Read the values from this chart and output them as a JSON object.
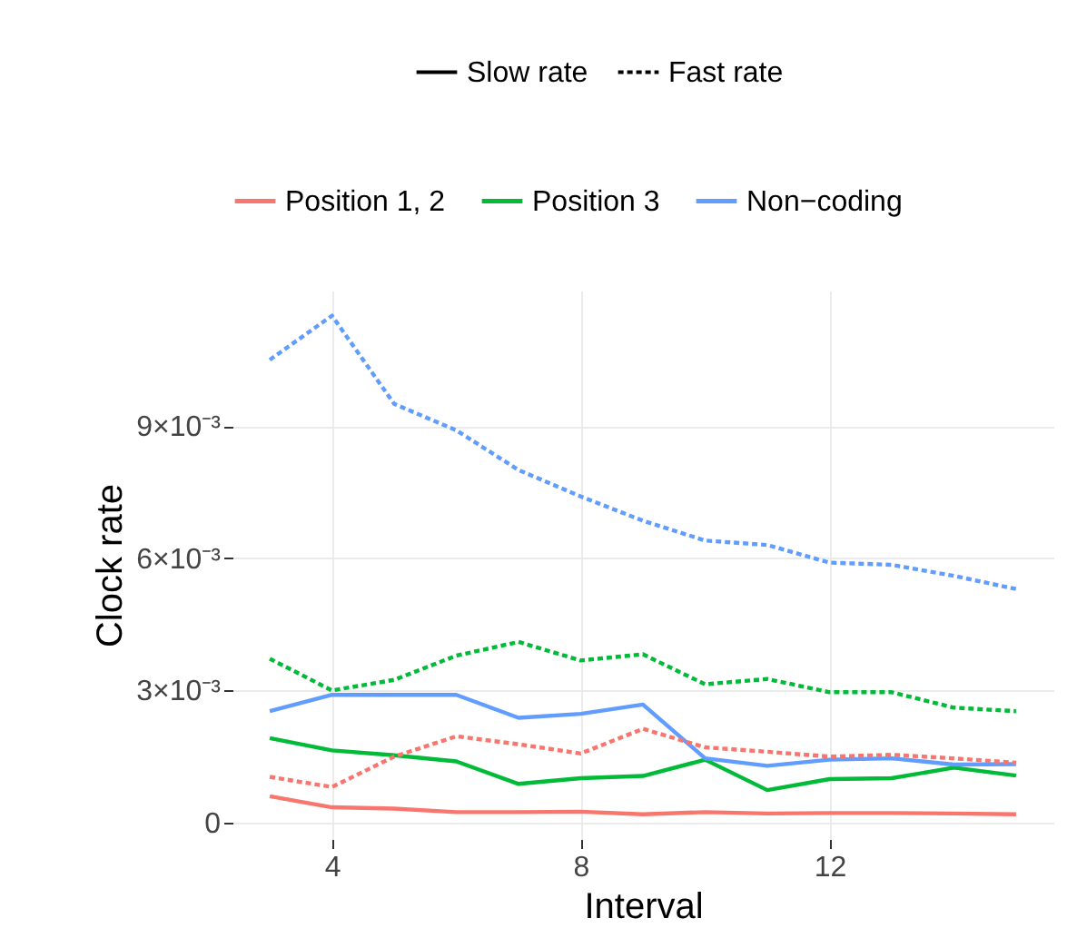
{
  "chart_data": {
    "type": "line",
    "xlabel": "Interval",
    "ylabel": "Clock rate",
    "x": [
      3,
      4,
      5,
      6,
      7,
      8,
      9,
      10,
      11,
      12,
      13,
      14,
      15
    ],
    "xlim": [
      2.4,
      15.6
    ],
    "xticks": [
      4,
      8,
      12
    ],
    "ylim": [
      -0.00037,
      0.01207
    ],
    "yticks": [
      0,
      {
        "value": 0.003,
        "label": "3×10⁻³"
      },
      {
        "value": 0.006,
        "label": "6×10⁻³"
      },
      {
        "value": 0.009,
        "label": "9×10⁻³"
      }
    ],
    "grid": true,
    "legend": "top",
    "marker": "none",
    "annotations": [
      "Slow rate",
      "Fast rate"
    ],
    "series": [
      {
        "name": "Position 1, 2",
        "color": "#f8766d",
        "line_style": "solid",
        "values": [
          0.0006,
          0.00035,
          0.00032,
          0.00024,
          0.00024,
          0.00025,
          0.00019,
          0.00024,
          0.00021,
          0.00022,
          0.00022,
          0.00021,
          0.00019
        ]
      },
      {
        "name": "Position 3",
        "color": "#00ba38",
        "line_style": "solid",
        "values": [
          0.00192,
          0.00164,
          0.00153,
          0.00139,
          0.00088,
          0.00101,
          0.00106,
          0.00143,
          0.00074,
          0.00099,
          0.00101,
          0.00125,
          0.00107
        ]
      },
      {
        "name": "Non−coding",
        "color": "#619cff",
        "line_style": "solid",
        "values": [
          0.00253,
          0.0029,
          0.0029,
          0.0029,
          0.00238,
          0.00247,
          0.00268,
          0.00146,
          0.00129,
          0.00143,
          0.00146,
          0.00132,
          0.00133
        ]
      },
      {
        "color": "#f8766d",
        "line_style": "dashed",
        "values": [
          0.00104,
          0.00081,
          0.0015,
          0.00196,
          0.00178,
          0.00157,
          0.00213,
          0.00171,
          0.00161,
          0.0015,
          0.00154,
          0.00146,
          0.00136
        ]
      },
      {
        "color": "#00ba38",
        "line_style": "dashed",
        "values": [
          0.00372,
          0.003,
          0.00324,
          0.00379,
          0.0041,
          0.00368,
          0.00382,
          0.00314,
          0.00326,
          0.00296,
          0.00296,
          0.00261,
          0.00253
        ]
      },
      {
        "color": "#619cff",
        "line_style": "dashed",
        "values": [
          0.0105,
          0.0115,
          0.0095,
          0.0089,
          0.008,
          0.0074,
          0.00685,
          0.0064,
          0.0063,
          0.0059,
          0.00585,
          0.0056,
          0.0053
        ]
      }
    ]
  }
}
